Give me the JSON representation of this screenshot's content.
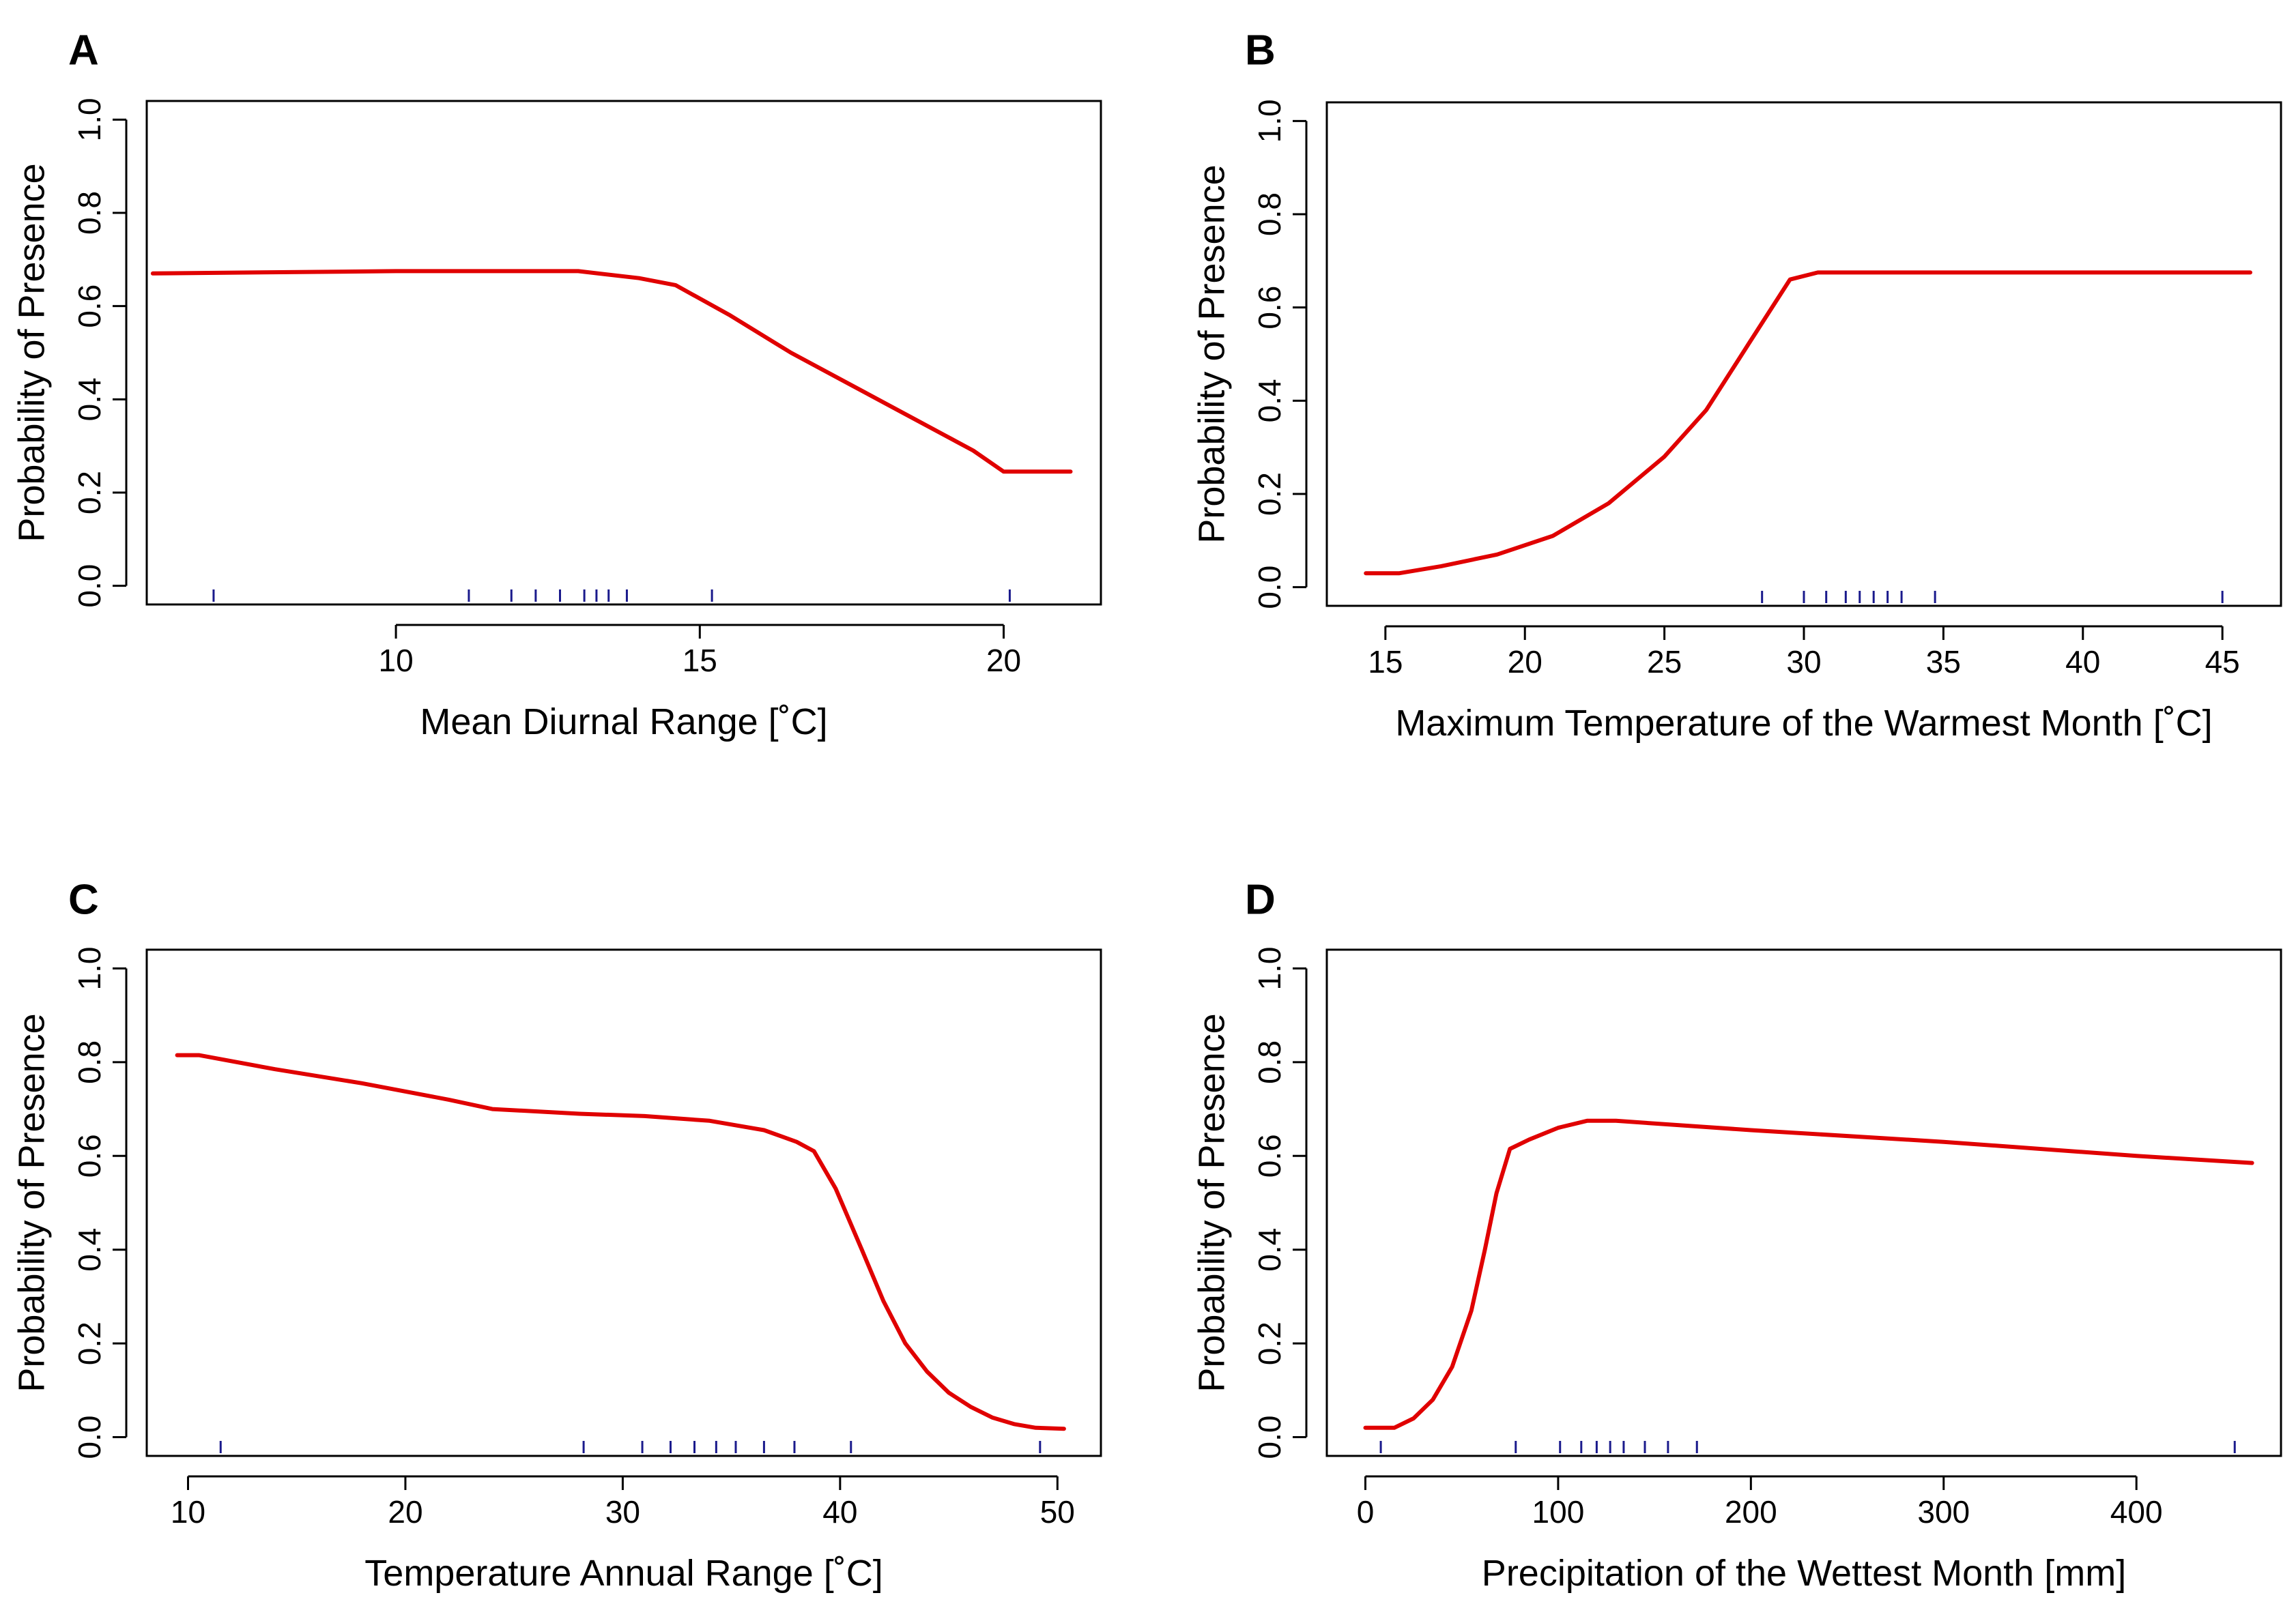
{
  "colors": {
    "curve": "#e00000",
    "rug": "#1a1a8c",
    "axes": "#000000",
    "background": "#ffffff"
  },
  "chart_data": [
    {
      "panel": "A",
      "type": "line",
      "xlabel": "Mean Diurnal Range [˚C]",
      "ylabel": "Probability of Presence",
      "xlim": [
        5.9,
        21.6
      ],
      "ylim": [
        -0.04,
        1.04
      ],
      "xticks": [
        10,
        15,
        20
      ],
      "yticks": [
        0.0,
        0.2,
        0.4,
        0.6,
        0.8,
        1.0
      ],
      "grid": false,
      "x": [
        6.0,
        10.0,
        13.0,
        14.0,
        14.6,
        15.5,
        16.5,
        17.5,
        18.5,
        19.5,
        20.0,
        21.1
      ],
      "y": [
        0.67,
        0.675,
        0.675,
        0.66,
        0.645,
        0.58,
        0.5,
        0.43,
        0.36,
        0.29,
        0.245,
        0.245
      ],
      "rug": [
        7.0,
        11.2,
        11.9,
        12.3,
        12.7,
        13.1,
        13.3,
        13.5,
        13.8,
        15.2,
        20.1
      ]
    },
    {
      "panel": "B",
      "type": "line",
      "xlabel": "Maximum Temperature of the Warmest Month [˚C]",
      "ylabel": "Probability of Presence",
      "xlim": [
        12.9,
        47.1
      ],
      "ylim": [
        -0.04,
        1.04
      ],
      "xticks": [
        15,
        20,
        25,
        30,
        35,
        40,
        45
      ],
      "yticks": [
        0.0,
        0.2,
        0.4,
        0.6,
        0.8,
        1.0
      ],
      "grid": false,
      "x": [
        14.3,
        15.5,
        17.0,
        19.0,
        21.0,
        23.0,
        25.0,
        26.5,
        28.0,
        29.5,
        30.5,
        46.0
      ],
      "y": [
        0.03,
        0.03,
        0.045,
        0.07,
        0.11,
        0.18,
        0.28,
        0.38,
        0.52,
        0.66,
        0.675,
        0.675
      ],
      "rug": [
        28.5,
        30.0,
        30.8,
        31.5,
        32.0,
        32.5,
        33.0,
        33.5,
        34.7,
        45.0
      ]
    },
    {
      "panel": "C",
      "type": "line",
      "xlabel": "Temperature Annual Range [˚C]",
      "ylabel": "Probability of Presence",
      "xlim": [
        8.1,
        52.0
      ],
      "ylim": [
        -0.04,
        1.04
      ],
      "xticks": [
        10,
        20,
        30,
        40,
        50
      ],
      "yticks": [
        0.0,
        0.2,
        0.4,
        0.6,
        0.8,
        1.0
      ],
      "grid": false,
      "x": [
        9.5,
        10.5,
        14.0,
        18.0,
        22.0,
        24.0,
        28.0,
        31.0,
        34.0,
        36.5,
        38.0,
        38.8,
        39.8,
        41.0,
        42.0,
        43.0,
        44.0,
        45.0,
        46.0,
        47.0,
        48.0,
        49.0,
        50.3
      ],
      "y": [
        0.815,
        0.815,
        0.785,
        0.755,
        0.72,
        0.7,
        0.69,
        0.685,
        0.675,
        0.655,
        0.63,
        0.61,
        0.53,
        0.4,
        0.29,
        0.2,
        0.14,
        0.095,
        0.065,
        0.042,
        0.028,
        0.02,
        0.018
      ],
      "rug": [
        11.5,
        28.2,
        30.9,
        32.2,
        33.3,
        34.3,
        35.2,
        36.5,
        37.9,
        40.5,
        49.2
      ]
    },
    {
      "panel": "D",
      "type": "line",
      "xlabel": "Precipitation of the Wettest Month [mm]",
      "ylabel": "Probability of Presence",
      "xlim": [
        -20,
        475
      ],
      "ylim": [
        -0.04,
        1.04
      ],
      "xticks": [
        0,
        100,
        200,
        300,
        400
      ],
      "yticks": [
        0.0,
        0.2,
        0.4,
        0.6,
        0.8,
        1.0
      ],
      "grid": false,
      "x": [
        0,
        15,
        25,
        35,
        45,
        55,
        62,
        68,
        75,
        85,
        100,
        115,
        130,
        200,
        300,
        400,
        460
      ],
      "y": [
        0.02,
        0.02,
        0.04,
        0.08,
        0.15,
        0.27,
        0.4,
        0.52,
        0.615,
        0.635,
        0.66,
        0.675,
        0.675,
        0.655,
        0.63,
        0.6,
        0.585
      ],
      "rug": [
        8,
        78,
        101,
        112,
        120,
        127,
        134,
        145,
        157,
        172,
        451
      ]
    }
  ]
}
